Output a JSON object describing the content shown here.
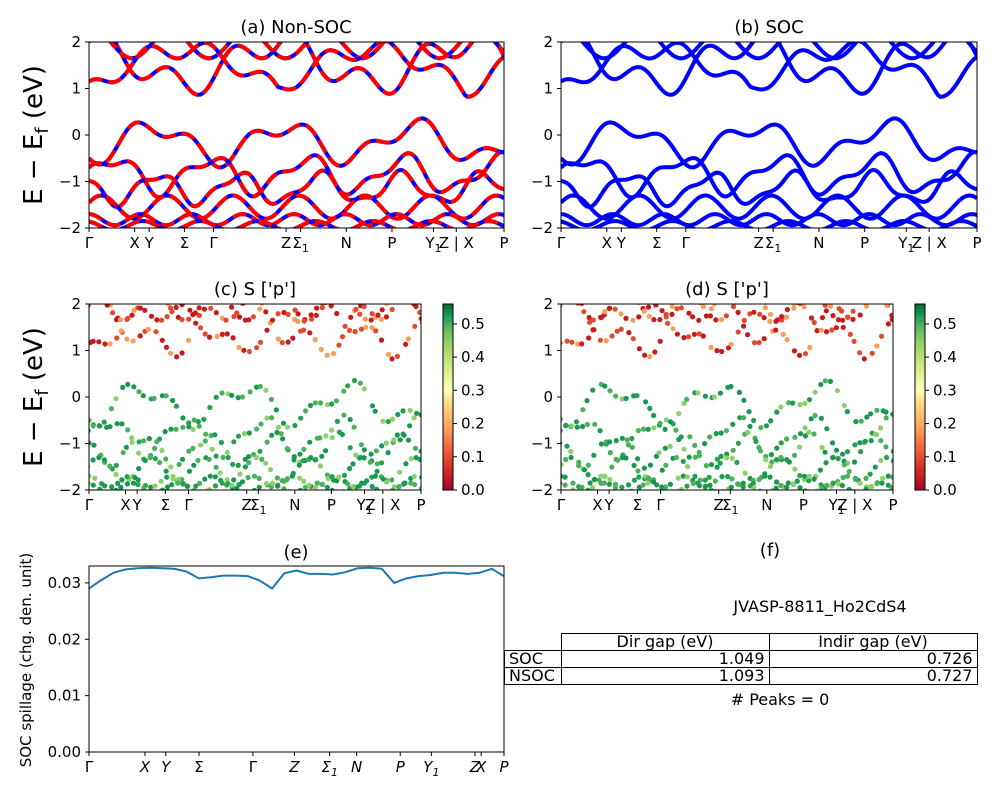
{
  "panels": {
    "a": {
      "title": "(a) Non-SOC"
    },
    "b": {
      "title": "(b) SOC"
    },
    "c": {
      "title": "(c)  S ['p']"
    },
    "d": {
      "title": "(d) S ['p']"
    },
    "e": {
      "title": "(e)"
    },
    "f": {
      "title": "(f)"
    }
  },
  "band_ylabel": "E − E",
  "band_ylabel_sub": "f",
  "band_ylabel_unit": " (eV)",
  "spillage_ylabel": "SOC spillage (chg. den. unit)",
  "table": {
    "title": "JVASP-8811_Ho2CdS4",
    "headers": [
      "Dir gap (eV)",
      "Indir gap (eV)"
    ],
    "rows": [
      {
        "label": "SOC",
        "dir": "1.049",
        "indir": "0.726"
      },
      {
        "label": "NSOC",
        "dir": "1.093",
        "indir": "0.727"
      }
    ],
    "peaks": "# Peaks = 0"
  },
  "chart_data": [
    {
      "type": "line",
      "panel": "a",
      "title": "(a) Non-SOC",
      "ylabel": "E − E_f (eV)",
      "ylim": [
        -2,
        2
      ],
      "yticks": [
        -2,
        -1,
        0,
        1,
        2
      ],
      "xticks": [
        "Γ",
        "X",
        "Y",
        "Σ",
        "Γ",
        "Z",
        "Σ1",
        "N",
        "P",
        "Y1",
        "Z | X",
        "P"
      ],
      "series": [
        {
          "color": "#0000ff",
          "style": "solid"
        },
        {
          "color": "#ff0000",
          "style": "dashed"
        }
      ]
    },
    {
      "type": "line",
      "panel": "b",
      "title": "(b) SOC",
      "ylim": [
        -2,
        2
      ],
      "yticks": [
        -2,
        -1,
        0,
        1,
        2
      ],
      "xticks": [
        "Γ",
        "X",
        "Y",
        "Σ",
        "Γ",
        "Z",
        "Σ1",
        "N",
        "P",
        "Y1",
        "Z | X",
        "P"
      ],
      "series": [
        {
          "color": "#0000ff",
          "style": "solid"
        }
      ]
    },
    {
      "type": "scatter",
      "panel": "c",
      "title": "(c)  S ['p']",
      "ylabel": "E − E_f (eV)",
      "ylim": [
        -2,
        2
      ],
      "yticks": [
        -2,
        -1,
        0,
        1,
        2
      ],
      "xticks": [
        "Γ",
        "X",
        "Y",
        "Σ",
        "Γ",
        "Z",
        "Σ1",
        "N",
        "P",
        "Y1",
        "Z | X",
        "P"
      ],
      "colorbar": {
        "min": 0.0,
        "max": 0.56,
        "ticks": [
          "0.0",
          "0.1",
          "0.2",
          "0.3",
          "0.4",
          "0.5"
        ],
        "colormap": "RdYlGn"
      }
    },
    {
      "type": "scatter",
      "panel": "d",
      "title": "(d) S ['p']",
      "ylim": [
        -2,
        2
      ],
      "yticks": [
        -2,
        -1,
        0,
        1,
        2
      ],
      "xticks": [
        "Γ",
        "X",
        "Y",
        "Σ",
        "Γ",
        "Z",
        "Σ1",
        "N",
        "P",
        "Y1",
        "Z | X",
        "P"
      ],
      "colorbar": {
        "min": 0.0,
        "max": 0.56,
        "ticks": [
          "0.0",
          "0.1",
          "0.2",
          "0.3",
          "0.4",
          "0.5"
        ],
        "colormap": "RdYlGn"
      }
    },
    {
      "type": "line",
      "panel": "e",
      "title": "(e)",
      "ylabel": "SOC spillage (chg. den. unit)",
      "ylim": [
        0,
        0.033
      ],
      "yticks": [
        "0.00",
        "0.01",
        "0.02",
        "0.03"
      ],
      "xticks": [
        "Γ",
        "X",
        "Y",
        "Σ",
        "Γ",
        "Z",
        "Σ1",
        "N",
        "P",
        "Y1",
        "Z",
        "X",
        "P"
      ],
      "series": [
        {
          "color": "#1f77b4",
          "values": [
            0.029,
            0.0305,
            0.0318,
            0.0324,
            0.0326,
            0.0327,
            0.0326,
            0.0325,
            0.032,
            0.0308,
            0.031,
            0.0313,
            0.0313,
            0.0312,
            0.0304,
            0.029,
            0.0317,
            0.0322,
            0.0316,
            0.0316,
            0.0315,
            0.0319,
            0.0326,
            0.0327,
            0.0325,
            0.03,
            0.0308,
            0.0312,
            0.0314,
            0.0318,
            0.0318,
            0.0316,
            0.0318,
            0.0325,
            0.0312
          ]
        }
      ]
    }
  ]
}
